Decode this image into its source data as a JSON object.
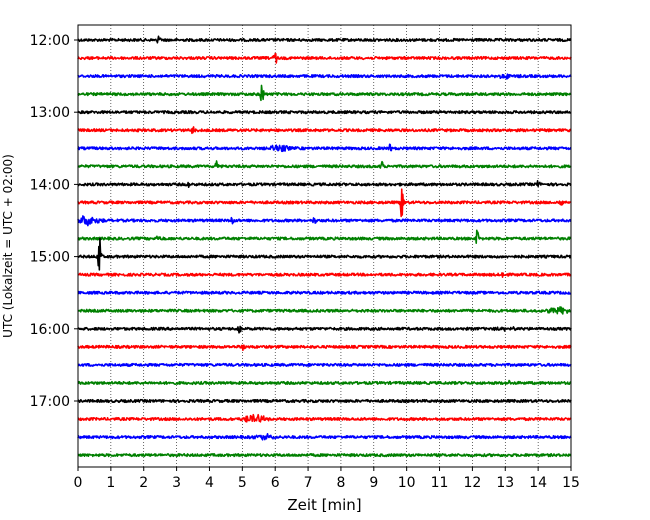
{
  "chart_data": {
    "type": "line",
    "title": "",
    "xlabel": "Zeit  [min]",
    "ylabel": "UTC (Lokalzeit = UTC + 02:00)",
    "xlim": [
      0,
      15
    ],
    "x_ticks": [
      0,
      1,
      2,
      3,
      4,
      5,
      6,
      7,
      8,
      9,
      10,
      11,
      12,
      13,
      14,
      15
    ],
    "y_ticks": [
      "12:00",
      "13:00",
      "14:00",
      "15:00",
      "16:00",
      "17:00"
    ],
    "grid": "vertical dotted",
    "trace_interval_min": 15,
    "trace_colors": [
      "#000000",
      "#ff0000",
      "#0000ff",
      "#008000"
    ],
    "traces": [
      {
        "start": "12:00",
        "events": [
          {
            "t": 2.45,
            "a": 0.35
          }
        ]
      },
      {
        "start": "12:15",
        "events": [
          {
            "t": 6.0,
            "a": 0.45
          }
        ]
      },
      {
        "start": "12:30",
        "events": [
          {
            "t": 13.0,
            "a": 0.35,
            "spindle": true
          }
        ]
      },
      {
        "start": "12:45",
        "events": [
          {
            "t": 5.6,
            "a": 0.9
          }
        ]
      },
      {
        "start": "13:00",
        "events": []
      },
      {
        "start": "13:15",
        "events": [
          {
            "t": 3.5,
            "a": 0.3
          }
        ]
      },
      {
        "start": "13:30",
        "events": [
          {
            "t": 6.1,
            "a": 0.5,
            "spindle": true
          },
          {
            "t": 9.5,
            "a": 0.3
          }
        ]
      },
      {
        "start": "13:45",
        "events": [
          {
            "t": 4.2,
            "a": 0.5
          },
          {
            "t": 9.25,
            "a": 0.5
          }
        ]
      },
      {
        "start": "14:00",
        "events": [
          {
            "t": 3.4,
            "a": 0.35
          },
          {
            "t": 14.0,
            "a": 0.25
          }
        ]
      },
      {
        "start": "14:15",
        "events": [
          {
            "t": 9.85,
            "a": 1.1
          },
          {
            "t": 14.7,
            "a": 0.3
          }
        ]
      },
      {
        "start": "14:30",
        "events": [
          {
            "t": 0.3,
            "a": 0.75,
            "spindle": true
          },
          {
            "t": 4.7,
            "a": 0.3
          },
          {
            "t": 7.2,
            "a": 0.3
          }
        ]
      },
      {
        "start": "14:45",
        "events": [
          {
            "t": 2.45,
            "a": 0.3
          },
          {
            "t": 12.15,
            "a": 0.7
          }
        ]
      },
      {
        "start": "15:00",
        "events": [
          {
            "t": 0.65,
            "a": 1.4
          }
        ]
      },
      {
        "start": "15:15",
        "events": [
          {
            "t": 12.9,
            "a": 0.25
          }
        ]
      },
      {
        "start": "15:30",
        "events": []
      },
      {
        "start": "15:45",
        "events": [
          {
            "t": 14.6,
            "a": 0.5,
            "spindle": true
          }
        ]
      },
      {
        "start": "16:00",
        "events": [
          {
            "t": 4.9,
            "a": 0.4
          },
          {
            "t": 13.0,
            "a": 0.25,
            "spindle": true
          }
        ]
      },
      {
        "start": "16:15",
        "events": [
          {
            "t": 5.0,
            "a": 0.35
          }
        ]
      },
      {
        "start": "16:30",
        "events": []
      },
      {
        "start": "16:45",
        "events": [
          {
            "t": 13.1,
            "a": 0.3
          }
        ]
      },
      {
        "start": "17:00",
        "events": []
      },
      {
        "start": "17:15",
        "events": [
          {
            "t": 5.4,
            "a": 0.6,
            "spindle": true
          }
        ]
      },
      {
        "start": "17:30",
        "events": [
          {
            "t": 5.7,
            "a": 0.45,
            "spindle": true
          }
        ]
      },
      {
        "start": "17:45",
        "events": []
      }
    ]
  }
}
